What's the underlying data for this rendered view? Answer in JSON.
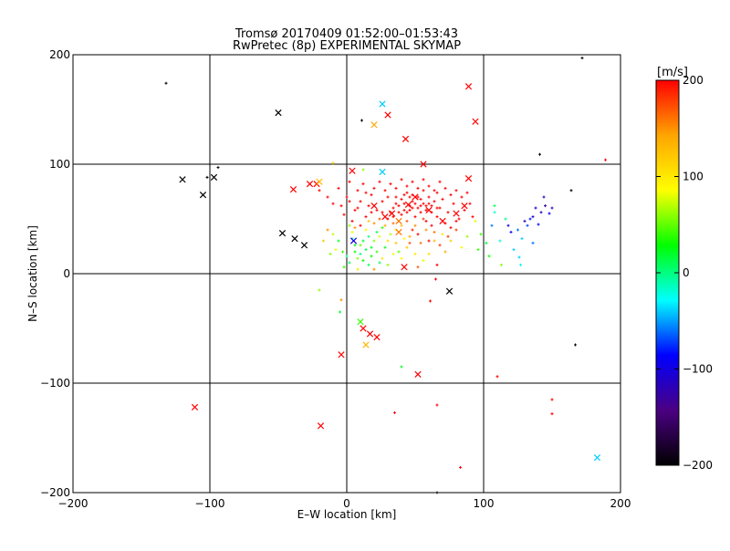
{
  "chart_data": {
    "type": "scatter",
    "title": "Tromsø 20170409 01:52:00–01:53:43",
    "subtitle": "RwPretec (8p) EXPERIMENTAL SKYMAP",
    "xlabel": "E–W location [km]",
    "ylabel": "N–S location [km]",
    "xlim": [
      -200,
      200
    ],
    "ylim": [
      -200,
      200
    ],
    "xticks": [
      -200,
      -100,
      0,
      100,
      200
    ],
    "yticks": [
      -200,
      -100,
      0,
      100,
      200
    ],
    "x_tick_labels": [
      "−200",
      "−100",
      "0",
      "100",
      "200"
    ],
    "y_tick_labels": [
      "−200",
      "−100",
      "0",
      "100",
      "200"
    ],
    "grid": true,
    "grid_lines": [
      -100,
      0,
      100
    ],
    "colorbar": {
      "label": "[m/s]",
      "min": -200,
      "max": 200,
      "ticks": [
        200,
        100,
        0,
        -100,
        -200
      ],
      "tick_labels": [
        "200",
        "100",
        "0",
        "−100",
        "−200"
      ],
      "colormap": [
        "#000000",
        "#4b0082",
        "#0000ff",
        "#00ffff",
        "#00ff00",
        "#ffff00",
        "#ffa500",
        "#ff0000"
      ]
    },
    "crosses": [
      {
        "x": -50,
        "y": 147,
        "v": -200
      },
      {
        "x": -120,
        "y": 86,
        "v": -200
      },
      {
        "x": -105,
        "y": 72,
        "v": -200
      },
      {
        "x": -97,
        "y": 88,
        "v": -200
      },
      {
        "x": -47,
        "y": 37,
        "v": -200
      },
      {
        "x": -38,
        "y": 32,
        "v": -200
      },
      {
        "x": -31,
        "y": 26,
        "v": -200
      },
      {
        "x": 75,
        "y": -16,
        "v": -200
      },
      {
        "x": -111,
        "y": -122,
        "v": 200
      },
      {
        "x": -19,
        "y": -139,
        "v": 200
      },
      {
        "x": -4,
        "y": -74,
        "v": 200
      },
      {
        "x": 12,
        "y": -50,
        "v": 200
      },
      {
        "x": 17,
        "y": -55,
        "v": 200
      },
      {
        "x": 22,
        "y": -58,
        "v": 200
      },
      {
        "x": 52,
        "y": -92,
        "v": 200
      },
      {
        "x": 14,
        "y": -65,
        "v": 130
      },
      {
        "x": 10,
        "y": -44,
        "v": 40
      },
      {
        "x": 183,
        "y": -168,
        "v": -40
      },
      {
        "x": 26,
        "y": 155,
        "v": -40
      },
      {
        "x": 26,
        "y": 93,
        "v": -40
      },
      {
        "x": 20,
        "y": 136,
        "v": 140
      },
      {
        "x": 30,
        "y": 145,
        "v": 200
      },
      {
        "x": 89,
        "y": 171,
        "v": 200
      },
      {
        "x": 43,
        "y": 123,
        "v": 200
      },
      {
        "x": 94,
        "y": 139,
        "v": 200
      },
      {
        "x": 56,
        "y": 100,
        "v": 200
      },
      {
        "x": 89,
        "y": 87,
        "v": 200
      },
      {
        "x": -39,
        "y": 77,
        "v": 200
      },
      {
        "x": -27,
        "y": 82,
        "v": 200
      },
      {
        "x": -22,
        "y": 82,
        "v": 200
      },
      {
        "x": -20,
        "y": 84,
        "v": 130
      },
      {
        "x": 4,
        "y": 94,
        "v": 200
      },
      {
        "x": 20,
        "y": 62,
        "v": 200
      },
      {
        "x": 33,
        "y": 55,
        "v": 200
      },
      {
        "x": 45,
        "y": 63,
        "v": 200
      },
      {
        "x": 50,
        "y": 70,
        "v": 200
      },
      {
        "x": 60,
        "y": 58,
        "v": 200
      },
      {
        "x": 38,
        "y": 48,
        "v": 160
      },
      {
        "x": 28,
        "y": 52,
        "v": 200
      },
      {
        "x": 70,
        "y": 48,
        "v": 200
      },
      {
        "x": 80,
        "y": 55,
        "v": 200
      },
      {
        "x": 86,
        "y": 62,
        "v": 200
      },
      {
        "x": 42,
        "y": 6,
        "v": 200
      },
      {
        "x": 5,
        "y": 30,
        "v": -100
      },
      {
        "x": 38,
        "y": 38,
        "v": 160
      }
    ],
    "dots": [
      {
        "x": -132,
        "y": 174,
        "v": -200
      },
      {
        "x": -94,
        "y": 97,
        "v": -200
      },
      {
        "x": -102,
        "y": 88,
        "v": -200
      },
      {
        "x": 141,
        "y": 109,
        "v": -200
      },
      {
        "x": 164,
        "y": 76,
        "v": -200
      },
      {
        "x": 172,
        "y": 197,
        "v": -200
      },
      {
        "x": 167,
        "y": -65,
        "v": -200
      },
      {
        "x": 11,
        "y": 140,
        "v": -200
      },
      {
        "x": 66,
        "y": -200,
        "v": -200
      },
      {
        "x": 189,
        "y": 104,
        "v": 200
      },
      {
        "x": 110,
        "y": -94,
        "v": 200
      },
      {
        "x": 150,
        "y": -115,
        "v": 200
      },
      {
        "x": 150,
        "y": -128,
        "v": 200
      },
      {
        "x": 66,
        "y": -120,
        "v": 200
      },
      {
        "x": 35,
        "y": -127,
        "v": 200
      },
      {
        "x": 83,
        "y": -177,
        "v": 200
      },
      {
        "x": 61,
        "y": -25,
        "v": 200
      },
      {
        "x": 65,
        "y": -5,
        "v": 200
      },
      {
        "x": -10,
        "y": 101,
        "v": 120
      },
      {
        "x": 12,
        "y": 95,
        "v": 60
      },
      {
        "x": 40,
        "y": -85,
        "v": 20
      },
      {
        "x": -4,
        "y": -24,
        "v": 150
      },
      {
        "x": -20,
        "y": -15,
        "v": 60
      },
      {
        "x": -5,
        "y": -35,
        "v": 20
      },
      {
        "x": 125,
        "y": 40,
        "v": -60
      },
      {
        "x": 130,
        "y": 48,
        "v": -120
      },
      {
        "x": 136,
        "y": 52,
        "v": -110
      },
      {
        "x": 142,
        "y": 56,
        "v": -120
      },
      {
        "x": 145,
        "y": 62,
        "v": -130
      },
      {
        "x": 150,
        "y": 60,
        "v": -120
      },
      {
        "x": 138,
        "y": 60,
        "v": -100
      },
      {
        "x": 144,
        "y": 70,
        "v": -110
      },
      {
        "x": 148,
        "y": 55,
        "v": -90
      },
      {
        "x": 132,
        "y": 44,
        "v": -70
      },
      {
        "x": 128,
        "y": 32,
        "v": -40
      },
      {
        "x": 120,
        "y": 38,
        "v": -90
      },
      {
        "x": 118,
        "y": 44,
        "v": -100
      },
      {
        "x": 122,
        "y": 22,
        "v": -40
      },
      {
        "x": 112,
        "y": 30,
        "v": -20
      },
      {
        "x": 106,
        "y": 44,
        "v": -60
      },
      {
        "x": 102,
        "y": 28,
        "v": 20
      },
      {
        "x": 108,
        "y": 56,
        "v": -20
      },
      {
        "x": 98,
        "y": 36,
        "v": 40
      },
      {
        "x": 104,
        "y": 16,
        "v": 30
      },
      {
        "x": 126,
        "y": 15,
        "v": -40
      },
      {
        "x": 113,
        "y": 8,
        "v": 60
      },
      {
        "x": 127,
        "y": 8,
        "v": -30
      },
      {
        "x": 136,
        "y": 28,
        "v": -60
      },
      {
        "x": 140,
        "y": 45,
        "v": -90
      },
      {
        "x": 134,
        "y": 50,
        "v": -80
      },
      {
        "x": 94,
        "y": 48,
        "v": 80
      },
      {
        "x": 108,
        "y": 62,
        "v": 10
      },
      {
        "x": 116,
        "y": 50,
        "v": 0
      },
      {
        "x": 96,
        "y": 22,
        "v": 40
      },
      {
        "x": -17,
        "y": 30,
        "v": 120
      },
      {
        "x": -12,
        "y": 18,
        "v": 60
      },
      {
        "x": -8,
        "y": 22,
        "v": 80
      },
      {
        "x": 2,
        "y": 10,
        "v": 10
      },
      {
        "x": -3,
        "y": 20,
        "v": 40
      },
      {
        "x": 6,
        "y": 26,
        "v": 20
      },
      {
        "x": 10,
        "y": 18,
        "v": 0
      },
      {
        "x": 14,
        "y": 22,
        "v": 10
      },
      {
        "x": 18,
        "y": 16,
        "v": 30
      },
      {
        "x": 8,
        "y": 14,
        "v": 60
      },
      {
        "x": 12,
        "y": 30,
        "v": 20
      },
      {
        "x": 16,
        "y": 8,
        "v": 10
      },
      {
        "x": 22,
        "y": 20,
        "v": 40
      },
      {
        "x": 20,
        "y": 30,
        "v": 60
      },
      {
        "x": 4,
        "y": 38,
        "v": 80
      },
      {
        "x": 26,
        "y": 14,
        "v": 100
      },
      {
        "x": 24,
        "y": 34,
        "v": 80
      },
      {
        "x": -6,
        "y": 30,
        "v": 20
      },
      {
        "x": -2,
        "y": 6,
        "v": 40
      },
      {
        "x": 28,
        "y": 24,
        "v": 20
      },
      {
        "x": 30,
        "y": 8,
        "v": 60
      },
      {
        "x": 34,
        "y": 18,
        "v": 80
      },
      {
        "x": 36,
        "y": 28,
        "v": 120
      },
      {
        "x": 40,
        "y": 14,
        "v": 90
      },
      {
        "x": 44,
        "y": 24,
        "v": 120
      },
      {
        "x": 46,
        "y": 34,
        "v": 140
      },
      {
        "x": 50,
        "y": 18,
        "v": 100
      },
      {
        "x": 54,
        "y": 28,
        "v": 160
      },
      {
        "x": 58,
        "y": 40,
        "v": 150
      },
      {
        "x": 60,
        "y": 18,
        "v": 110
      },
      {
        "x": 64,
        "y": 30,
        "v": 130
      },
      {
        "x": 70,
        "y": 36,
        "v": 100
      },
      {
        "x": 72,
        "y": 20,
        "v": 140
      },
      {
        "x": 76,
        "y": 30,
        "v": 120
      },
      {
        "x": 80,
        "y": 40,
        "v": 180
      },
      {
        "x": 84,
        "y": 24,
        "v": 90
      },
      {
        "x": 88,
        "y": 34,
        "v": 60
      },
      {
        "x": 52,
        "y": 6,
        "v": 170
      },
      {
        "x": 48,
        "y": 40,
        "v": 190
      },
      {
        "x": 66,
        "y": 8,
        "v": 200
      },
      {
        "x": 20,
        "y": 4,
        "v": 150
      },
      {
        "x": 8,
        "y": 4,
        "v": 100
      },
      {
        "x": -10,
        "y": 36,
        "v": 70
      },
      {
        "x": -14,
        "y": 40,
        "v": 150
      },
      {
        "x": 2,
        "y": 44,
        "v": 60
      },
      {
        "x": 26,
        "y": 42,
        "v": 40
      },
      {
        "x": 32,
        "y": 36,
        "v": 70
      },
      {
        "x": 38,
        "y": 20,
        "v": 50
      },
      {
        "x": 14,
        "y": 40,
        "v": 90
      },
      {
        "x": 42,
        "y": 32,
        "v": 90
      },
      {
        "x": 56,
        "y": 12,
        "v": 80
      },
      {
        "x": 6,
        "y": 20,
        "v": 30
      },
      {
        "x": 10,
        "y": 26,
        "v": 50
      },
      {
        "x": 16,
        "y": 34,
        "v": 0
      },
      {
        "x": 18,
        "y": 24,
        "v": 20
      },
      {
        "x": 24,
        "y": 10,
        "v": 10
      },
      {
        "x": 0,
        "y": 16,
        "v": 0
      },
      {
        "x": 12,
        "y": 12,
        "v": 30
      },
      {
        "x": 4,
        "y": 32,
        "v": -10
      },
      {
        "x": 22,
        "y": 38,
        "v": 10
      },
      {
        "x": -4,
        "y": 62,
        "v": 200
      },
      {
        "x": 0,
        "y": 70,
        "v": 200
      },
      {
        "x": 6,
        "y": 58,
        "v": 200
      },
      {
        "x": 10,
        "y": 66,
        "v": 200
      },
      {
        "x": 14,
        "y": 52,
        "v": 200
      },
      {
        "x": 18,
        "y": 72,
        "v": 200
      },
      {
        "x": 22,
        "y": 58,
        "v": 200
      },
      {
        "x": 26,
        "y": 66,
        "v": 200
      },
      {
        "x": 30,
        "y": 50,
        "v": 200
      },
      {
        "x": 34,
        "y": 60,
        "v": 200
      },
      {
        "x": 36,
        "y": 70,
        "v": 200
      },
      {
        "x": 40,
        "y": 54,
        "v": 200
      },
      {
        "x": 42,
        "y": 64,
        "v": 200
      },
      {
        "x": 44,
        "y": 74,
        "v": 200
      },
      {
        "x": 46,
        "y": 58,
        "v": 200
      },
      {
        "x": 48,
        "y": 66,
        "v": 200
      },
      {
        "x": 50,
        "y": 52,
        "v": 200
      },
      {
        "x": 52,
        "y": 60,
        "v": 200
      },
      {
        "x": 54,
        "y": 68,
        "v": 200
      },
      {
        "x": 56,
        "y": 76,
        "v": 200
      },
      {
        "x": 58,
        "y": 62,
        "v": 200
      },
      {
        "x": 60,
        "y": 70,
        "v": 200
      },
      {
        "x": 62,
        "y": 56,
        "v": 200
      },
      {
        "x": 64,
        "y": 66,
        "v": 200
      },
      {
        "x": 66,
        "y": 74,
        "v": 200
      },
      {
        "x": 68,
        "y": 60,
        "v": 200
      },
      {
        "x": 70,
        "y": 68,
        "v": 200
      },
      {
        "x": 74,
        "y": 56,
        "v": 200
      },
      {
        "x": 78,
        "y": 64,
        "v": 200
      },
      {
        "x": 82,
        "y": 50,
        "v": 200
      },
      {
        "x": 86,
        "y": 58,
        "v": 200
      },
      {
        "x": 90,
        "y": 64,
        "v": 200
      },
      {
        "x": 92,
        "y": 52,
        "v": 200
      },
      {
        "x": -20,
        "y": 76,
        "v": 200
      },
      {
        "x": -14,
        "y": 70,
        "v": 200
      },
      {
        "x": -10,
        "y": 64,
        "v": 200
      },
      {
        "x": -6,
        "y": 78,
        "v": 200
      },
      {
        "x": 2,
        "y": 84,
        "v": 200
      },
      {
        "x": 8,
        "y": 76,
        "v": 200
      },
      {
        "x": 12,
        "y": 82,
        "v": 200
      },
      {
        "x": 16,
        "y": 62,
        "v": 200
      },
      {
        "x": 20,
        "y": 78,
        "v": 200
      },
      {
        "x": 24,
        "y": 84,
        "v": 200
      },
      {
        "x": 28,
        "y": 76,
        "v": 200
      },
      {
        "x": 32,
        "y": 82,
        "v": 200
      },
      {
        "x": 36,
        "y": 78,
        "v": 200
      },
      {
        "x": 40,
        "y": 86,
        "v": 200
      },
      {
        "x": 44,
        "y": 80,
        "v": 200
      },
      {
        "x": 48,
        "y": 84,
        "v": 200
      },
      {
        "x": 52,
        "y": 78,
        "v": 200
      },
      {
        "x": 56,
        "y": 86,
        "v": 200
      },
      {
        "x": 60,
        "y": 80,
        "v": 200
      },
      {
        "x": 64,
        "y": 76,
        "v": 200
      },
      {
        "x": 68,
        "y": 84,
        "v": 200
      },
      {
        "x": 72,
        "y": 78,
        "v": 200
      },
      {
        "x": 76,
        "y": 72,
        "v": 200
      },
      {
        "x": 80,
        "y": 76,
        "v": 200
      },
      {
        "x": 84,
        "y": 70,
        "v": 200
      },
      {
        "x": 88,
        "y": 74,
        "v": 200
      },
      {
        "x": -2,
        "y": 54,
        "v": 200
      },
      {
        "x": 4,
        "y": 48,
        "v": 200
      },
      {
        "x": 10,
        "y": 44,
        "v": 200
      },
      {
        "x": 2,
        "y": 66,
        "v": 200
      },
      {
        "x": 8,
        "y": 60,
        "v": 200
      },
      {
        "x": 14,
        "y": 74,
        "v": 200
      },
      {
        "x": 30,
        "y": 70,
        "v": 200
      },
      {
        "x": 38,
        "y": 62,
        "v": 200
      },
      {
        "x": 46,
        "y": 70,
        "v": 200
      },
      {
        "x": 54,
        "y": 56,
        "v": 200
      },
      {
        "x": 58,
        "y": 48,
        "v": 200
      },
      {
        "x": 62,
        "y": 44,
        "v": 200
      },
      {
        "x": 66,
        "y": 52,
        "v": 200
      },
      {
        "x": 72,
        "y": 46,
        "v": 200
      },
      {
        "x": 76,
        "y": 42,
        "v": 200
      },
      {
        "x": 80,
        "y": 48,
        "v": 200
      },
      {
        "x": 24,
        "y": 50,
        "v": 170
      },
      {
        "x": 20,
        "y": 46,
        "v": 150
      },
      {
        "x": 34,
        "y": 46,
        "v": 160
      },
      {
        "x": 28,
        "y": 44,
        "v": 140
      },
      {
        "x": 44,
        "y": 48,
        "v": 170
      },
      {
        "x": 50,
        "y": 44,
        "v": 150
      },
      {
        "x": 16,
        "y": 48,
        "v": 120
      },
      {
        "x": 6,
        "y": 42,
        "v": 150
      },
      {
        "x": 56,
        "y": 50,
        "v": 180
      },
      {
        "x": 40,
        "y": 44,
        "v": 130
      },
      {
        "x": 64,
        "y": 38,
        "v": 160
      },
      {
        "x": 74,
        "y": 34,
        "v": 180
      },
      {
        "x": 36,
        "y": 40,
        "v": 90
      },
      {
        "x": 30,
        "y": 30,
        "v": 110
      },
      {
        "x": 46,
        "y": 28,
        "v": 170
      },
      {
        "x": 52,
        "y": 36,
        "v": 200
      },
      {
        "x": 60,
        "y": 30,
        "v": 200
      },
      {
        "x": 68,
        "y": 26,
        "v": 180
      },
      {
        "x": 18,
        "y": 56,
        "v": 200
      },
      {
        "x": 26,
        "y": 56,
        "v": 200
      },
      {
        "x": 32,
        "y": 56,
        "v": 200
      },
      {
        "x": 42,
        "y": 58,
        "v": 200
      },
      {
        "x": 48,
        "y": 60,
        "v": 200
      },
      {
        "x": 52,
        "y": 70,
        "v": 200
      },
      {
        "x": 56,
        "y": 64,
        "v": 200
      },
      {
        "x": 60,
        "y": 64,
        "v": 200
      },
      {
        "x": 50,
        "y": 64,
        "v": 200
      },
      {
        "x": 46,
        "y": 62,
        "v": 200
      },
      {
        "x": 54,
        "y": 62,
        "v": 200
      },
      {
        "x": 58,
        "y": 58,
        "v": 200
      },
      {
        "x": 44,
        "y": 56,
        "v": 200
      },
      {
        "x": 38,
        "y": 56,
        "v": 200
      },
      {
        "x": 34,
        "y": 52,
        "v": 200
      },
      {
        "x": 62,
        "y": 62,
        "v": 200
      },
      {
        "x": 66,
        "y": 60,
        "v": 200
      },
      {
        "x": 40,
        "y": 68,
        "v": 200
      },
      {
        "x": 48,
        "y": 72,
        "v": 200
      },
      {
        "x": 42,
        "y": 72,
        "v": 200
      },
      {
        "x": 36,
        "y": 64,
        "v": 200
      }
    ]
  }
}
